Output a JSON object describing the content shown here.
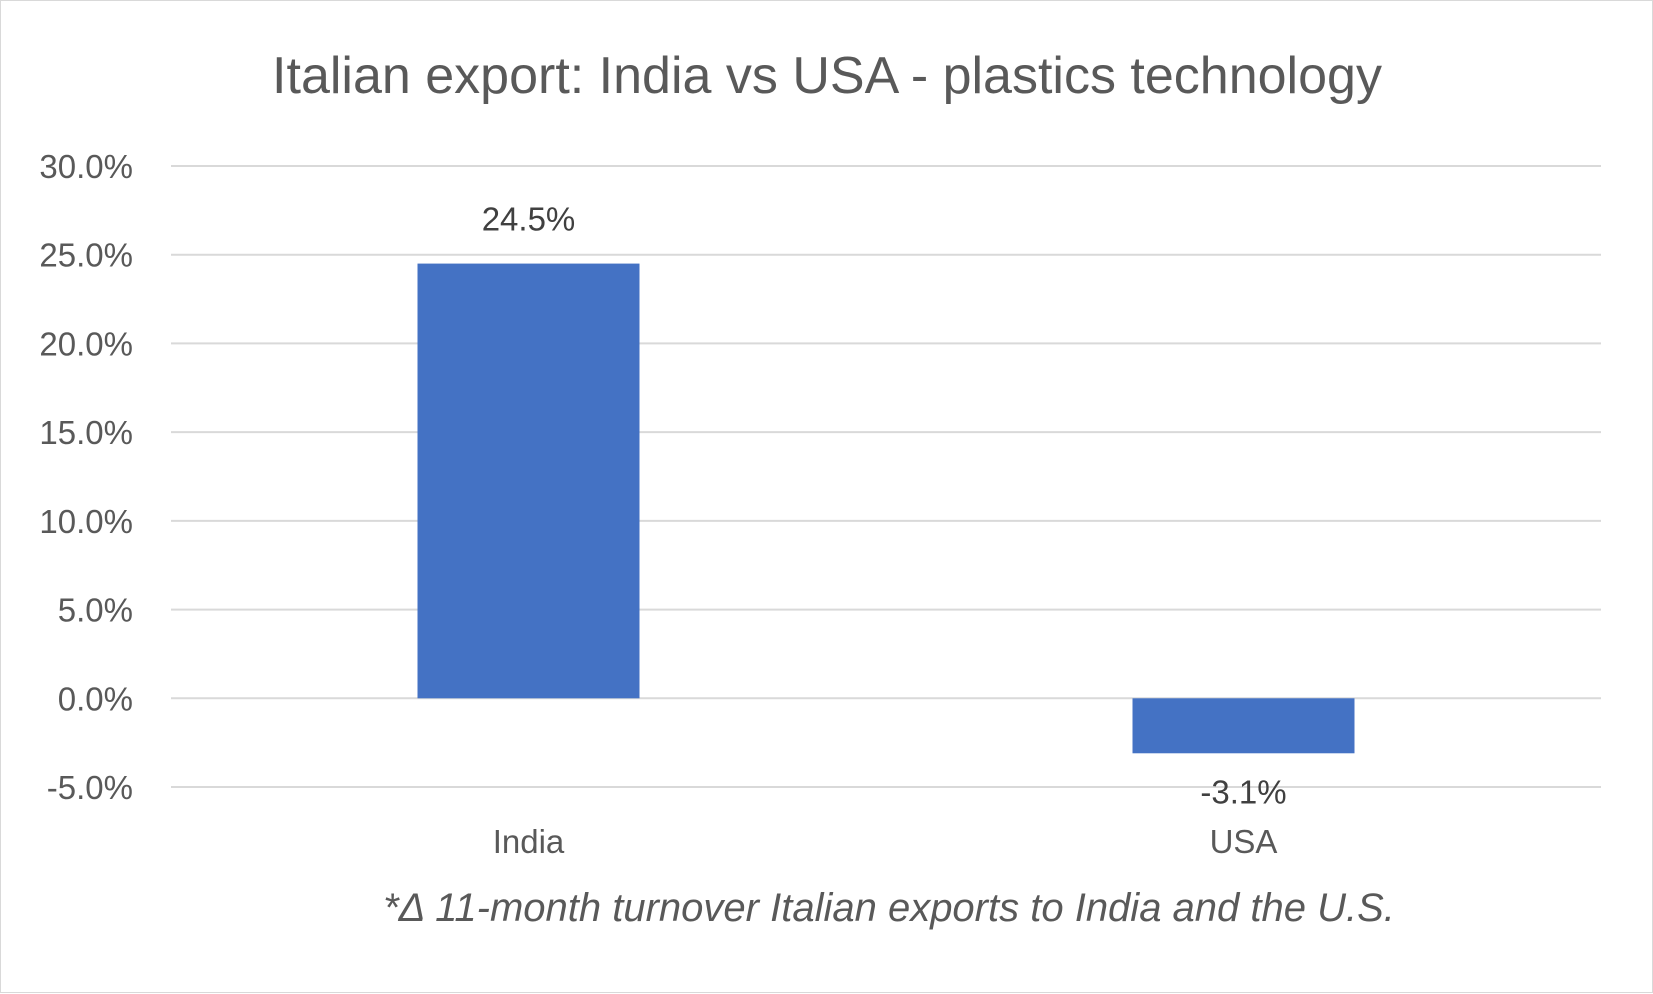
{
  "chart_data": {
    "type": "bar",
    "title": "Italian export: India vs USA - plastics technology",
    "categories": [
      "India",
      "USA"
    ],
    "values": [
      24.5,
      -3.1
    ],
    "data_labels": [
      "24.5%",
      "-3.1%"
    ],
    "bar_color": "#4472C4",
    "ylim": [
      -5.0,
      30.0
    ],
    "yticks": [
      30.0,
      25.0,
      20.0,
      15.0,
      10.0,
      5.0,
      0.0,
      -5.0
    ],
    "ytick_labels": [
      "30.0%",
      "25.0%",
      "20.0%",
      "15.0%",
      "10.0%",
      "5.0%",
      "0.0%",
      "-5.0%"
    ],
    "grid": true,
    "legend": "none",
    "xlabel": "",
    "ylabel": "",
    "footnote": "*Δ 11-month turnover Italian exports to India and the U.S."
  }
}
